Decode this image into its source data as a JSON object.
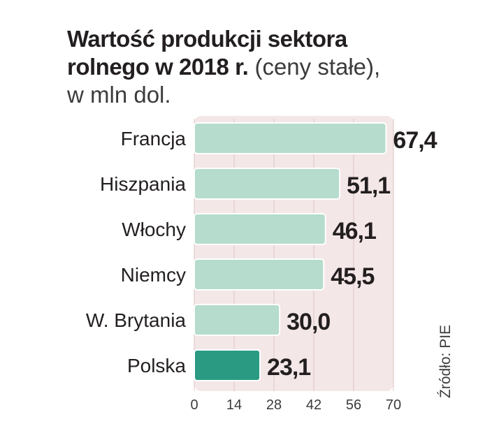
{
  "title": {
    "line1": "Wartość produkcji sektora",
    "line2_bold": "rolnego w 2018 r.",
    "line2_light": " (ceny stałe),",
    "line3": "w mln dol."
  },
  "source": "Źródło: PIE",
  "colors": {
    "bar": "#b5dccd",
    "bar_highlight": "#2a9a83",
    "bar_border": "#ffffff",
    "plot_background": "#f4e7e7",
    "grid": "#dcc6c6",
    "text": "#231f20"
  },
  "chart_data": {
    "type": "bar",
    "orientation": "horizontal",
    "categories": [
      "Francja",
      "Hiszpania",
      "Włochy",
      "Niemcy",
      "W. Brytania",
      "Polska"
    ],
    "values": [
      67.4,
      51.1,
      46.1,
      45.5,
      30.0,
      23.1
    ],
    "value_labels": [
      "67,4",
      "51,1",
      "46,1",
      "45,5",
      "30,0",
      "23,1"
    ],
    "highlight": "Polska",
    "xlim": [
      0,
      70
    ],
    "xticks": [
      0,
      14,
      28,
      42,
      56,
      70
    ],
    "grid": true
  }
}
